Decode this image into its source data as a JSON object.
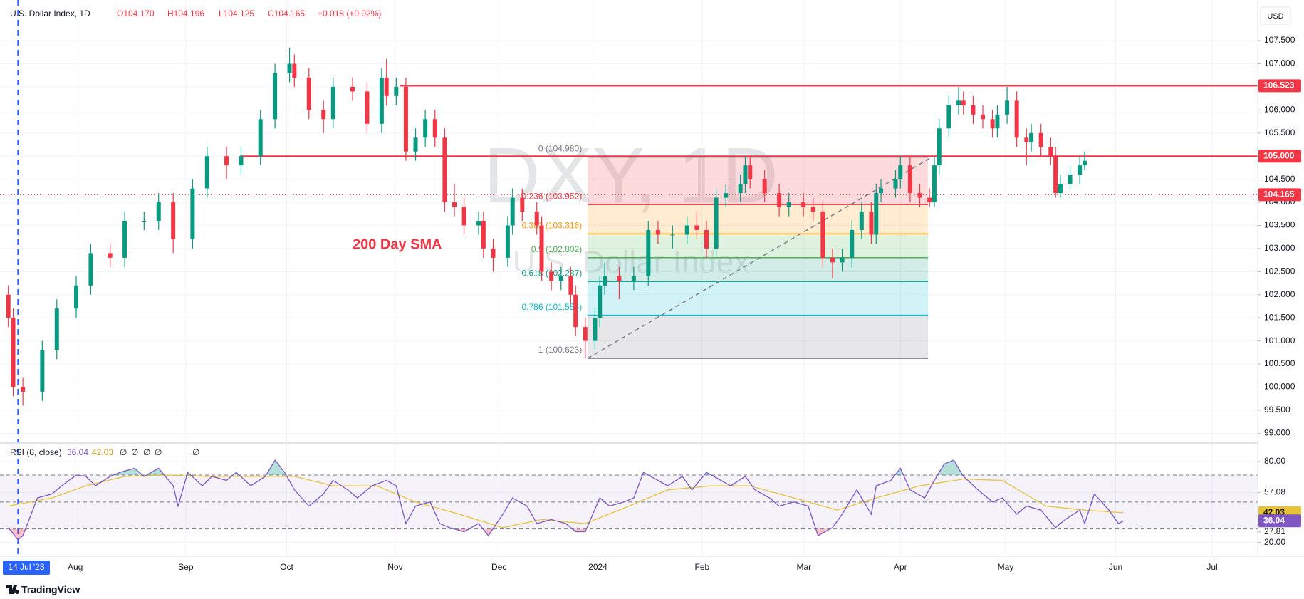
{
  "chart_data": [
    {
      "type": "candlestick",
      "title": "U.S. Dollar Index, 1D",
      "ohlc_text": [
        "O104.170",
        "H104.196",
        "L104.125",
        "C104.165"
      ],
      "change": "+0.018 (+0.02%)",
      "currency": "USD",
      "watermark": "DXY, 1D",
      "watermark_subtitle": "U.S. Dollar Index",
      "annotation": "200 Day SMA",
      "brand": "TradingView",
      "up_color": "#089981",
      "down_color": "#f23645",
      "grid": true,
      "xlim": [
        -1.72,
        257.7
      ],
      "ylim": [
        98.82,
        108.38
      ],
      "xticks": [
        {
          "value": 13.8,
          "label": "Aug"
        },
        {
          "value": 36.6,
          "label": "Sep"
        },
        {
          "value": 57.4,
          "label": "Oct"
        },
        {
          "value": 79.8,
          "label": "Nov"
        },
        {
          "value": 101.2,
          "label": "Dec"
        },
        {
          "value": 121.6,
          "label": "2024"
        },
        {
          "value": 143.1,
          "label": "Feb"
        },
        {
          "value": 164.1,
          "label": "Mar"
        },
        {
          "value": 184,
          "label": "Apr"
        },
        {
          "value": 205.7,
          "label": "May"
        },
        {
          "value": 228.4,
          "label": "Jun"
        },
        {
          "value": 248.3,
          "label": "Jul"
        }
      ],
      "yticks": [
        {
          "value": 99,
          "label": "99.000"
        },
        {
          "value": 99.5,
          "label": "99.500"
        },
        {
          "value": 100,
          "label": "100.000"
        },
        {
          "value": 100.5,
          "label": "100.500"
        },
        {
          "value": 101,
          "label": "101.000"
        },
        {
          "value": 101.5,
          "label": "101.500"
        },
        {
          "value": 102,
          "label": "102.000"
        },
        {
          "value": 102.5,
          "label": "102.500"
        },
        {
          "value": 103,
          "label": "103.000"
        },
        {
          "value": 103.5,
          "label": "103.500"
        },
        {
          "value": 104,
          "label": "104.000"
        },
        {
          "value": 104.5,
          "label": "104.500"
        },
        {
          "value": 105,
          "label": "105.000"
        },
        {
          "value": 105.5,
          "label": "105.500"
        },
        {
          "value": 106,
          "label": "106.000"
        },
        {
          "value": 106.5,
          "label": "106.500"
        },
        {
          "value": 107,
          "label": "107.000"
        },
        {
          "value": 107.5,
          "label": "107.500"
        }
      ],
      "x": [
        0,
        1,
        3,
        7,
        10,
        14,
        17,
        21,
        24,
        28,
        31,
        34,
        38,
        41,
        45,
        48,
        52,
        55,
        58,
        59,
        62,
        65,
        67,
        71,
        74,
        77,
        78,
        80,
        82,
        84,
        86,
        88,
        90,
        92,
        94,
        97,
        98,
        100,
        103,
        104,
        106,
        109,
        110,
        112,
        114,
        116,
        117,
        119,
        121,
        122,
        123,
        126,
        129,
        132,
        134,
        137,
        140,
        142,
        144,
        146,
        148,
        151,
        152,
        153,
        156,
        159,
        161,
        164,
        166,
        168,
        170,
        172,
        174,
        176,
        178,
        179,
        180,
        183,
        184,
        186,
        188,
        190,
        191,
        192,
        194,
        196,
        197,
        199,
        201,
        203,
        204,
        206,
        208,
        210,
        211,
        213,
        215,
        216,
        217,
        219,
        221,
        222
      ],
      "open": [
        102.0,
        101.5,
        100.0,
        99.9,
        100.8,
        101.7,
        102.2,
        102.9,
        102.8,
        103.6,
        103.6,
        104.0,
        103.2,
        104.3,
        105.0,
        104.8,
        105.0,
        105.8,
        106.8,
        107.0,
        106.7,
        106.0,
        105.8,
        106.5,
        106.4,
        105.7,
        106.7,
        106.3,
        106.5,
        105.1,
        105.4,
        105.8,
        105.4,
        104.0,
        103.9,
        103.5,
        103.6,
        103.0,
        102.8,
        103.5,
        104.1,
        103.8,
        103.5,
        102.5,
        102.3,
        102.4,
        102.0,
        101.3,
        101.0,
        101.5,
        102.2,
        102.4,
        102.3,
        102.4,
        103.4,
        103.3,
        103.3,
        103.5,
        103.4,
        103.0,
        104.1,
        104.2,
        104.4,
        104.8,
        104.5,
        104.2,
        103.9,
        104.0,
        103.9,
        103.8,
        102.8,
        102.7,
        102.8,
        103.4,
        103.8,
        103.3,
        104.2,
        104.3,
        104.5,
        104.8,
        104.2,
        104.1,
        104.0,
        104.8,
        105.6,
        106.1,
        106.2,
        106.1,
        105.9,
        105.8,
        105.6,
        105.9,
        106.2,
        105.4,
        105.3,
        105.5,
        105.2,
        105.0,
        104.2,
        104.4,
        104.6,
        104.8
      ],
      "high": [
        102.2,
        101.7,
        100.2,
        101.0,
        101.9,
        102.4,
        103.1,
        103.1,
        103.8,
        103.8,
        104.2,
        104.2,
        104.5,
        105.2,
        105.2,
        105.2,
        106.0,
        107.0,
        107.35,
        107.2,
        106.9,
        106.2,
        106.7,
        106.7,
        106.6,
        106.9,
        107.1,
        106.7,
        106.7,
        105.6,
        106.0,
        106.0,
        105.6,
        104.4,
        104.1,
        103.8,
        103.8,
        103.2,
        103.7,
        104.3,
        104.3,
        104.0,
        103.7,
        102.7,
        102.6,
        102.6,
        102.2,
        101.5,
        101.7,
        102.4,
        102.7,
        102.6,
        102.6,
        103.6,
        103.6,
        103.5,
        103.7,
        103.8,
        103.6,
        104.3,
        104.4,
        104.6,
        105.0,
        105.0,
        104.7,
        104.4,
        104.2,
        104.2,
        104.1,
        104.0,
        103.0,
        103.0,
        103.6,
        104.0,
        104.0,
        104.4,
        104.5,
        104.7,
        105.0,
        105.0,
        104.4,
        104.3,
        105.0,
        105.8,
        106.3,
        106.5,
        106.4,
        106.3,
        106.1,
        106.0,
        106.1,
        106.5,
        106.4,
        105.6,
        105.7,
        105.7,
        105.4,
        105.2,
        104.6,
        104.8,
        105.0,
        105.1
      ],
      "low": [
        101.3,
        99.8,
        99.6,
        99.7,
        100.6,
        101.5,
        102.0,
        102.6,
        102.6,
        103.4,
        103.4,
        102.9,
        103.0,
        104.1,
        104.5,
        104.6,
        104.8,
        105.6,
        106.6,
        106.5,
        105.8,
        105.5,
        105.6,
        106.2,
        105.5,
        105.5,
        106.1,
        106.1,
        104.9,
        104.9,
        105.2,
        105.2,
        103.8,
        103.7,
        103.3,
        103.3,
        102.8,
        102.5,
        102.6,
        103.3,
        103.6,
        103.3,
        102.3,
        102.1,
        102.1,
        101.8,
        101.1,
        100.62,
        100.8,
        101.3,
        102.0,
        101.9,
        102.1,
        102.2,
        103.1,
        103.0,
        103.1,
        103.2,
        102.8,
        102.8,
        103.9,
        104.0,
        104.2,
        104.3,
        104.0,
        103.7,
        103.7,
        103.7,
        103.6,
        102.6,
        102.35,
        102.5,
        102.6,
        103.2,
        103.1,
        103.1,
        104.0,
        104.1,
        104.3,
        104.0,
        103.9,
        103.9,
        103.9,
        104.6,
        105.4,
        105.9,
        105.9,
        105.7,
        105.6,
        105.4,
        105.4,
        105.7,
        105.2,
        104.8,
        105.1,
        105.0,
        104.8,
        104.1,
        104.1,
        104.3,
        104.4,
        104.7
      ],
      "close": [
        101.5,
        100.0,
        99.9,
        100.8,
        101.7,
        102.2,
        102.9,
        102.8,
        103.6,
        103.6,
        104.0,
        103.2,
        104.3,
        105.0,
        104.8,
        105.0,
        105.8,
        106.8,
        107.0,
        106.7,
        106.0,
        105.8,
        106.5,
        106.4,
        105.7,
        106.7,
        106.3,
        106.5,
        105.1,
        105.4,
        105.8,
        105.4,
        104.0,
        103.9,
        103.5,
        103.6,
        103.0,
        102.8,
        103.5,
        104.1,
        103.8,
        103.5,
        102.5,
        102.3,
        102.4,
        102.0,
        101.3,
        101.0,
        101.5,
        102.2,
        102.4,
        102.3,
        102.4,
        103.4,
        103.3,
        103.3,
        103.5,
        103.4,
        103.0,
        104.1,
        104.2,
        104.4,
        104.8,
        104.5,
        104.2,
        103.9,
        104.0,
        103.9,
        103.8,
        102.8,
        102.7,
        102.8,
        103.4,
        103.8,
        103.3,
        104.2,
        104.3,
        104.5,
        104.8,
        104.2,
        104.1,
        104.0,
        104.8,
        105.6,
        106.1,
        106.2,
        106.1,
        105.9,
        105.8,
        105.6,
        105.9,
        106.2,
        105.4,
        105.3,
        105.5,
        105.2,
        105.0,
        104.2,
        104.4,
        104.6,
        104.8,
        104.9
      ],
      "last_price": 104.165,
      "last_price_color": "#f23645",
      "levels": [
        {
          "value": 106.523,
          "label": "106.523",
          "x_start": 80.7,
          "color": "#f23645"
        },
        {
          "value": 105,
          "label": "105.000",
          "x_start": 47.8,
          "color": "#f23645"
        }
      ],
      "fib": {
        "x": [
          119.5,
          189.7
        ],
        "levels": [
          {
            "value": 104.98,
            "label": "0 (104.980)",
            "color": "#787b86"
          },
          {
            "value": 103.952,
            "label": "0.236 (103.952)",
            "color": "#f23645"
          },
          {
            "value": 103.316,
            "label": "0.382 (103.316)",
            "color": "#ff9800"
          },
          {
            "value": 102.802,
            "label": "0.5 (102.802)",
            "color": "#4caf50"
          },
          {
            "value": 102.287,
            "label": "0.618 (102.287)",
            "color": "#089981"
          },
          {
            "value": 101.555,
            "label": "0.786 (101.555)",
            "color": "#00bcd4"
          },
          {
            "value": 100.623,
            "label": "1 (100.623)",
            "color": "#787b86"
          }
        ]
      },
      "trend_line": {
        "x": [
          119.5,
          190.5
        ],
        "y": [
          100.623,
          104.98
        ]
      },
      "marker": {
        "x": 2,
        "label": "14 Jul '23",
        "color": "#2962ff"
      }
    },
    {
      "type": "line",
      "title": "RSI (8, close)",
      "extras": [
        "∅",
        "∅",
        "∅",
        "∅",
        "∅"
      ],
      "xlim": [
        -1.72,
        257.7
      ],
      "ylim": [
        9.75,
        92.7
      ],
      "yticks": [
        {
          "value": 80,
          "label": "80.00"
        },
        57.08,
        27.81,
        {
          "value": 20,
          "label": "20.00"
        }
      ],
      "band": [
        30,
        70
      ],
      "band_color": "#7e57c2",
      "dashed_levels": [
        70,
        50,
        30
      ],
      "series": [
        {
          "color": "#7e57c2",
          "x": [
            0,
            2,
            3,
            6,
            9,
            11,
            14,
            16,
            18,
            21,
            23,
            26,
            28,
            31,
            34,
            35,
            37,
            40,
            42,
            45,
            47,
            50,
            53,
            55,
            57,
            59,
            62,
            65,
            67,
            70,
            72,
            75,
            78,
            80,
            82,
            84,
            87,
            89,
            91,
            94,
            97,
            99,
            102,
            104,
            107,
            109,
            112,
            115,
            117,
            119,
            122,
            124,
            127,
            129,
            131,
            134,
            136,
            139,
            141,
            144,
            147,
            149,
            152,
            154,
            157,
            159,
            162,
            165,
            167,
            170,
            172,
            175,
            178,
            179,
            182,
            184,
            186,
            189,
            191,
            193,
            195,
            197,
            200,
            203,
            205,
            208,
            210,
            213,
            216,
            218,
            221,
            222,
            224,
            227,
            229,
            230
          ],
          "values": [
            31,
            22,
            25,
            53,
            56,
            62,
            70,
            69,
            62,
            69,
            72,
            75,
            69,
            75,
            62,
            47,
            72,
            62,
            69,
            66,
            72,
            62,
            69,
            81,
            72,
            59,
            47,
            56,
            66,
            59,
            53,
            62,
            66,
            62,
            34,
            47,
            50,
            34,
            31,
            28,
            34,
            25,
            41,
            53,
            47,
            34,
            37,
            34,
            28,
            28,
            53,
            47,
            50,
            53,
            72,
            66,
            62,
            69,
            59,
            72,
            66,
            62,
            69,
            59,
            53,
            47,
            50,
            47,
            25,
            31,
            41,
            59,
            41,
            62,
            66,
            75,
            59,
            53,
            66,
            78,
            81,
            69,
            59,
            50,
            53,
            41,
            47,
            44,
            31,
            37,
            44,
            34,
            56,
            44,
            34,
            36.04
          ]
        },
        {
          "color": "#e8c33a",
          "x": [
            0,
            9,
            16,
            24,
            33,
            41,
            50,
            59,
            67,
            76,
            84,
            93,
            102,
            110,
            119,
            128,
            136,
            145,
            153,
            162,
            171,
            179,
            188,
            197,
            205,
            214,
            222,
            230
          ],
          "values": [
            47,
            53,
            62,
            69,
            70,
            69,
            69,
            69,
            62,
            62,
            50,
            41,
            31,
            37,
            34,
            47,
            59,
            62,
            62,
            53,
            44,
            53,
            62,
            67,
            66,
            47,
            44,
            42.03
          ]
        }
      ]
    }
  ]
}
